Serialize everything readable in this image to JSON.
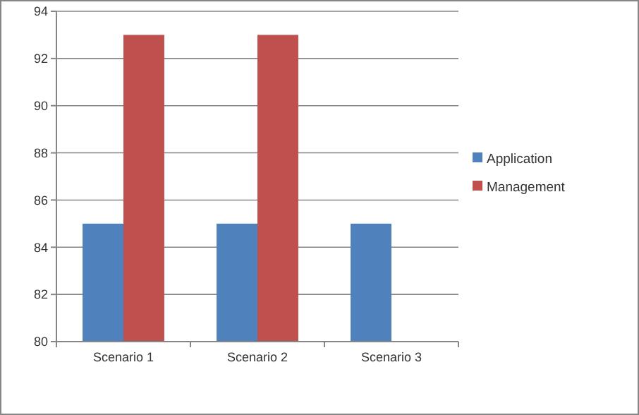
{
  "chart_data": {
    "type": "bar",
    "categories": [
      "Scenario 1",
      "Scenario 2",
      "Scenario 3"
    ],
    "series": [
      {
        "name": "Application",
        "color": "#4f81bd",
        "values": [
          85,
          85,
          85
        ]
      },
      {
        "name": "Management",
        "color": "#c0504d",
        "values": [
          93,
          93,
          null
        ]
      }
    ],
    "ylim": [
      80,
      94
    ],
    "yticks": [
      80,
      82,
      84,
      86,
      88,
      90,
      92,
      94
    ],
    "grid": "y",
    "legend": "right"
  }
}
